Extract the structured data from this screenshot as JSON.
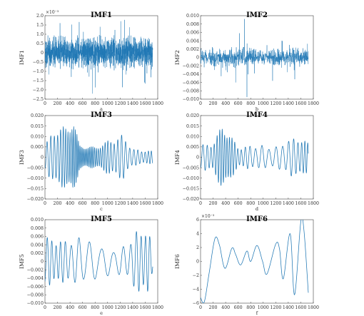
{
  "accent": "#1f77b4",
  "chart_data": [
    {
      "type": "line",
      "title": "IMF1",
      "ylabel": "IMF1",
      "xlabel": "a",
      "multiplier": "×10⁻³",
      "xlim": [
        0,
        1800
      ],
      "ylim": [
        -2.5,
        2.0
      ],
      "xticks": [
        0,
        200,
        400,
        600,
        800,
        1000,
        1200,
        1400,
        1600,
        1800
      ],
      "yticks": [
        2.0,
        1.5,
        1.0,
        0.5,
        0,
        -0.5,
        -1.0,
        -1.5,
        -2.0,
        -2.5
      ],
      "ytick_labels": [
        "2.0",
        "1.5",
        "1.0",
        "0.5",
        "0",
        "−0.5",
        "−1.0",
        "−1.5",
        "−2.0",
        "−2.5"
      ],
      "series": [
        {
          "kind": "noise",
          "points": 1720,
          "amplitude": 0.45,
          "extremes": [
            [
              760,
              -2.2
            ],
            [
              1210,
              1.7
            ],
            [
              240,
              1.6
            ],
            [
              1590,
              -1.6
            ],
            [
              880,
              1.4
            ],
            [
              420,
              -1.3
            ]
          ]
        }
      ]
    },
    {
      "type": "line",
      "title": "IMF2",
      "ylabel": "IMF2",
      "xlabel": "b",
      "xlim": [
        0,
        1800
      ],
      "ylim": [
        -0.01,
        0.01
      ],
      "xticks": [
        0,
        200,
        400,
        600,
        800,
        1000,
        1200,
        1400,
        1600,
        1800
      ],
      "yticks": [
        0.01,
        0.008,
        0.006,
        0.004,
        0.002,
        0,
        -0.002,
        -0.004,
        -0.006,
        -0.008,
        -0.01
      ],
      "ytick_labels": [
        "0.010",
        "0.008",
        "0.006",
        "0.004",
        "0.002",
        "0",
        "−0.002",
        "−0.004",
        "−0.006",
        "−0.008",
        "−0.010"
      ],
      "series": [
        {
          "kind": "noise",
          "points": 900,
          "amplitude": 0.0012,
          "extremes": [
            [
              740,
              -0.0095
            ],
            [
              700,
              0.0092
            ],
            [
              560,
              -0.006
            ],
            [
              620,
              0.0058
            ],
            [
              1150,
              -0.0056
            ],
            [
              1300,
              0.004
            ],
            [
              330,
              -0.0045
            ],
            [
              1420,
              0.003
            ]
          ]
        }
      ]
    },
    {
      "type": "line",
      "title": "IMF3",
      "ylabel": "IMF3",
      "xlabel": "c",
      "xlim": [
        0,
        1800
      ],
      "ylim": [
        -0.02,
        0.02
      ],
      "xticks": [
        0,
        200,
        400,
        600,
        800,
        1000,
        1200,
        1400,
        1600,
        1800
      ],
      "yticks": [
        0.02,
        0.015,
        0.01,
        0.005,
        0,
        -0.005,
        -0.01,
        -0.015,
        -0.02
      ],
      "ytick_labels": [
        "0.020",
        "0.015",
        "0.010",
        "0.005",
        "0",
        "−0.005",
        "−0.010",
        "−0.015",
        "−0.020"
      ],
      "series": [
        {
          "kind": "oscillation",
          "points": 900,
          "period": 55,
          "envelope": [
            [
              0,
              0.006
            ],
            [
              150,
              0.014
            ],
            [
              350,
              0.015
            ],
            [
              450,
              0.019
            ],
            [
              550,
              0.006
            ],
            [
              800,
              0.005
            ],
            [
              1000,
              0.008
            ],
            [
              1250,
              0.011
            ],
            [
              1400,
              0.004
            ],
            [
              1720,
              0.003
            ]
          ]
        }
      ]
    },
    {
      "type": "line",
      "title": "IMF4",
      "ylabel": "IMF4",
      "xlabel": "d",
      "xlim": [
        0,
        1800
      ],
      "ylim": [
        -0.02,
        0.02
      ],
      "xticks": [
        0,
        200,
        400,
        600,
        800,
        1000,
        1200,
        1400,
        1600,
        1800
      ],
      "yticks": [
        0.02,
        0.015,
        0.01,
        0.005,
        0,
        -0.005,
        -0.01,
        -0.015,
        -0.02
      ],
      "ytick_labels": [
        "0.020",
        "0.015",
        "0.010",
        "0.005",
        "0",
        "−0.005",
        "−0.010",
        "−0.015",
        "−0.020"
      ],
      "series": [
        {
          "kind": "oscillation",
          "points": 900,
          "period": 95,
          "envelope": [
            [
              0,
              0.006
            ],
            [
              200,
              0.007
            ],
            [
              350,
              0.016
            ],
            [
              450,
              0.012
            ],
            [
              600,
              0.005
            ],
            [
              900,
              0.006
            ],
            [
              1200,
              0.005
            ],
            [
              1350,
              0.008
            ],
            [
              1550,
              0.01
            ],
            [
              1720,
              0.007
            ]
          ]
        }
      ]
    },
    {
      "type": "line",
      "title": "IMF5",
      "ylabel": "IMF5",
      "xlabel": "e",
      "xlim": [
        0,
        1800
      ],
      "ylim": [
        -0.01,
        0.01
      ],
      "xticks": [
        0,
        200,
        400,
        600,
        800,
        1000,
        1200,
        1400,
        1600,
        1800
      ],
      "yticks": [
        0.01,
        0.008,
        0.006,
        0.004,
        0.002,
        0,
        -0.002,
        -0.004,
        -0.006,
        -0.008,
        -0.01
      ],
      "ytick_labels": [
        "0.010",
        "0.008",
        "0.006",
        "0.004",
        "0.002",
        "0",
        "−0.002",
        "−0.004",
        "−0.006",
        "−0.008",
        "−0.010"
      ],
      "series": [
        {
          "kind": "oscillation",
          "points": 700,
          "period": 170,
          "envelope": [
            [
              0,
              0.006
            ],
            [
              300,
              0.005
            ],
            [
              600,
              0.006
            ],
            [
              900,
              0.004
            ],
            [
              1100,
              0.003
            ],
            [
              1300,
              0.004
            ],
            [
              1500,
              0.008
            ],
            [
              1650,
              0.008
            ],
            [
              1720,
              0.002
            ]
          ]
        }
      ]
    },
    {
      "type": "line",
      "title": "IMF6",
      "ylabel": "IMF6",
      "xlabel": "f",
      "multiplier": "×10⁻³",
      "xlim": [
        0,
        1800
      ],
      "ylim": [
        -6,
        6
      ],
      "xticks": [
        0,
        200,
        400,
        600,
        800,
        1000,
        1200,
        1400,
        1600,
        1800
      ],
      "yticks": [
        6,
        4,
        2,
        0,
        -2,
        -4,
        -6
      ],
      "ytick_labels": [
        "6",
        "4",
        "2",
        "0",
        "−2",
        "−4",
        "−6"
      ],
      "series": [
        {
          "kind": "knots",
          "points": [
            [
              0,
              -5.2
            ],
            [
              60,
              -5.8
            ],
            [
              140,
              -1.5
            ],
            [
              230,
              3.3
            ],
            [
              300,
              2.4
            ],
            [
              390,
              -1.0
            ],
            [
              500,
              1.9
            ],
            [
              560,
              1.0
            ],
            [
              640,
              -0.5
            ],
            [
              740,
              1.5
            ],
            [
              800,
              0.0
            ],
            [
              900,
              2.3
            ],
            [
              990,
              0.0
            ],
            [
              1060,
              -1.8
            ],
            [
              1200,
              2.5
            ],
            [
              1260,
              1.8
            ],
            [
              1320,
              -2.5
            ],
            [
              1430,
              4.0
            ],
            [
              1500,
              -4.8
            ],
            [
              1600,
              5.7
            ],
            [
              1650,
              4.5
            ],
            [
              1720,
              -4.5
            ]
          ]
        }
      ]
    }
  ]
}
